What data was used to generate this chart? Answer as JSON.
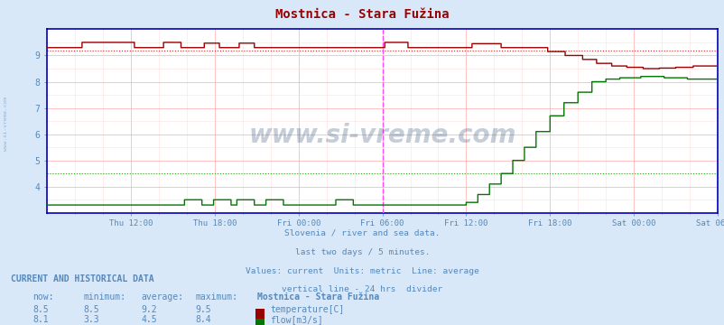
{
  "title": "Mostnica - Stara Fužina",
  "bg_color": "#d8e8f8",
  "plot_bg_color": "#ffffff",
  "grid_color_major": "#ffaaaa",
  "grid_color_minor": "#ffdddd",
  "text_color": "#5588bb",
  "axis_color": "#0000bb",
  "temp_color": "#990000",
  "temp_avg_color": "#dd2222",
  "flow_color": "#007700",
  "flow_avg_color": "#22aa22",
  "vline_color": "#ff44ff",
  "ylim": [
    3.0,
    10.0
  ],
  "yticks": [
    4,
    5,
    6,
    7,
    8,
    9
  ],
  "xlabel_ticks": [
    "Thu 12:00",
    "Thu 18:00",
    "Fri 00:00",
    "Fri 06:00",
    "Fri 12:00",
    "Fri 18:00",
    "Sat 00:00",
    "Sat 06:00"
  ],
  "subtitle1": "Slovenia / river and sea data.",
  "subtitle2": "last two days / 5 minutes.",
  "subtitle3": "Values: current  Units: metric  Line: average",
  "subtitle4": "vertical line - 24 hrs  divider",
  "footer_header": "CURRENT AND HISTORICAL DATA",
  "footer_cols": [
    "now:",
    "minimum:",
    "average:",
    "maximum:",
    "Mostnica - Stara Fužina"
  ],
  "temp_row": [
    "8.5",
    "8.5",
    "9.2",
    "9.5",
    "temperature[C]"
  ],
  "flow_row": [
    "8.1",
    "3.3",
    "4.5",
    "8.4",
    "flow[m3/s]"
  ],
  "temp_avg": 9.2,
  "flow_avg": 4.5,
  "watermark": "www.si-vreme.com"
}
